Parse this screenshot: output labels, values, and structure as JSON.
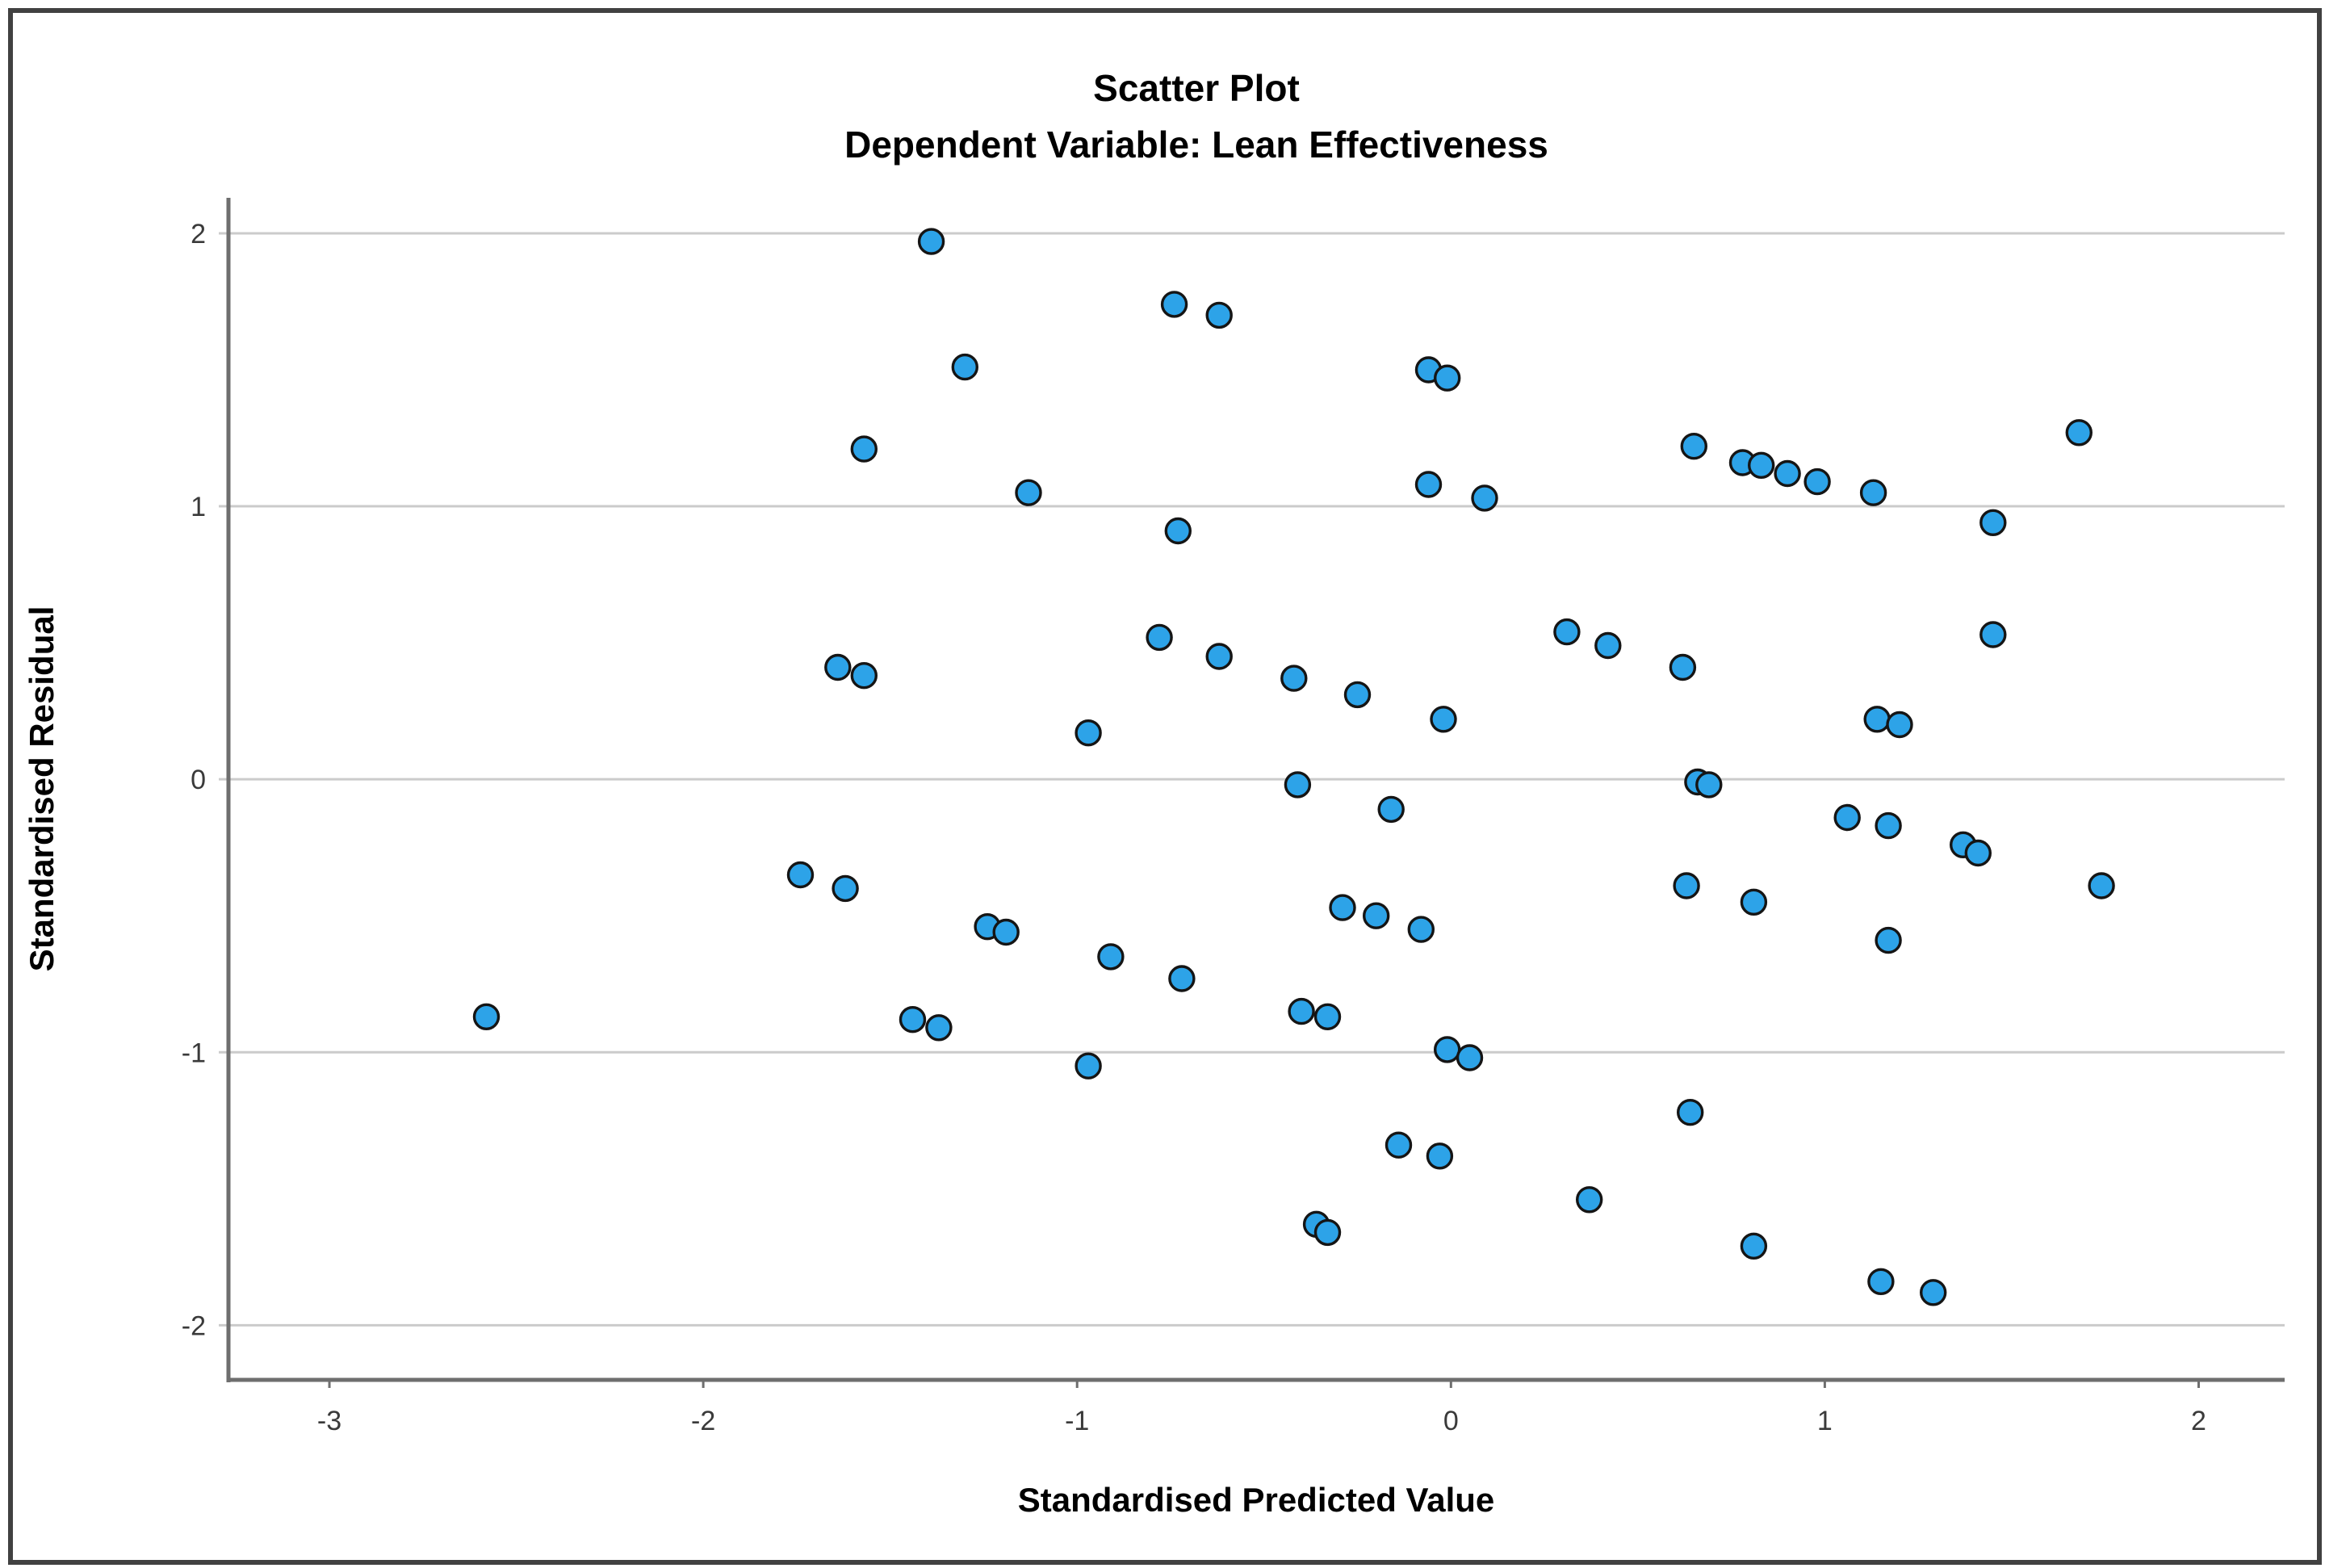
{
  "figure": {
    "background": "#ffffff",
    "border_color": "#414141"
  },
  "chart_data": {
    "type": "scatter",
    "title": "Scatter Plot",
    "subtitle": "Dependent Variable: Lean Effectiveness",
    "xlabel": "Standardised Predicted Value",
    "ylabel": "Standardised Residual",
    "x_ticks": [
      -3,
      -2,
      -1,
      0,
      1,
      2
    ],
    "y_ticks": [
      -2,
      -1,
      0,
      1,
      2
    ],
    "xlim": [
      -3.27,
      2.23
    ],
    "ylim": [
      -2.2,
      2.13
    ],
    "grid": "horizontal-only",
    "legend": "none",
    "colors": {
      "marker_fill": "#2DA3E8",
      "marker_stroke": "#151515",
      "gridline": "#cbcbcb",
      "axis_line": "#6e6e6e",
      "tick_label": "#3a3a3a"
    },
    "points": [
      [
        -1.39,
        1.97
      ],
      [
        -0.74,
        1.74
      ],
      [
        -0.62,
        1.7
      ],
      [
        -1.3,
        1.51
      ],
      [
        -0.06,
        1.5
      ],
      [
        -0.01,
        1.47
      ],
      [
        -1.57,
        1.21
      ],
      [
        0.65,
        1.22
      ],
      [
        1.68,
        1.27
      ],
      [
        0.78,
        1.16
      ],
      [
        0.83,
        1.15
      ],
      [
        0.9,
        1.12
      ],
      [
        0.98,
        1.09
      ],
      [
        1.13,
        1.05
      ],
      [
        -1.13,
        1.05
      ],
      [
        -0.06,
        1.08
      ],
      [
        0.09,
        1.03
      ],
      [
        -0.73,
        0.91
      ],
      [
        1.45,
        0.94
      ],
      [
        -0.78,
        0.52
      ],
      [
        -0.62,
        0.45
      ],
      [
        -0.42,
        0.37
      ],
      [
        -0.25,
        0.31
      ],
      [
        0.31,
        0.54
      ],
      [
        0.42,
        0.49
      ],
      [
        0.62,
        0.41
      ],
      [
        1.45,
        0.53
      ],
      [
        -1.64,
        0.41
      ],
      [
        -1.57,
        0.38
      ],
      [
        -0.97,
        0.17
      ],
      [
        -0.02,
        0.22
      ],
      [
        1.14,
        0.22
      ],
      [
        1.2,
        0.2
      ],
      [
        -0.41,
        -0.02
      ],
      [
        0.66,
        -0.01
      ],
      [
        0.69,
        -0.02
      ],
      [
        -0.16,
        -0.11
      ],
      [
        1.06,
        -0.14
      ],
      [
        1.17,
        -0.17
      ],
      [
        1.37,
        -0.24
      ],
      [
        1.41,
        -0.27
      ],
      [
        -1.74,
        -0.35
      ],
      [
        -1.62,
        -0.4
      ],
      [
        0.63,
        -0.39
      ],
      [
        1.74,
        -0.39
      ],
      [
        0.81,
        -0.45
      ],
      [
        -0.29,
        -0.47
      ],
      [
        -0.2,
        -0.5
      ],
      [
        -0.08,
        -0.55
      ],
      [
        -1.24,
        -0.54
      ],
      [
        -1.19,
        -0.56
      ],
      [
        1.17,
        -0.59
      ],
      [
        -0.91,
        -0.65
      ],
      [
        -0.72,
        -0.73
      ],
      [
        -0.4,
        -0.85
      ],
      [
        -0.33,
        -0.87
      ],
      [
        -2.58,
        -0.87
      ],
      [
        -1.44,
        -0.88
      ],
      [
        -1.37,
        -0.91
      ],
      [
        -0.97,
        -1.05
      ],
      [
        -0.01,
        -0.99
      ],
      [
        0.05,
        -1.02
      ],
      [
        0.64,
        -1.22
      ],
      [
        -0.14,
        -1.34
      ],
      [
        -0.03,
        -1.38
      ],
      [
        0.37,
        -1.54
      ],
      [
        -0.36,
        -1.63
      ],
      [
        -0.33,
        -1.66
      ],
      [
        0.81,
        -1.71
      ],
      [
        1.15,
        -1.84
      ],
      [
        1.29,
        -1.88
      ]
    ]
  }
}
